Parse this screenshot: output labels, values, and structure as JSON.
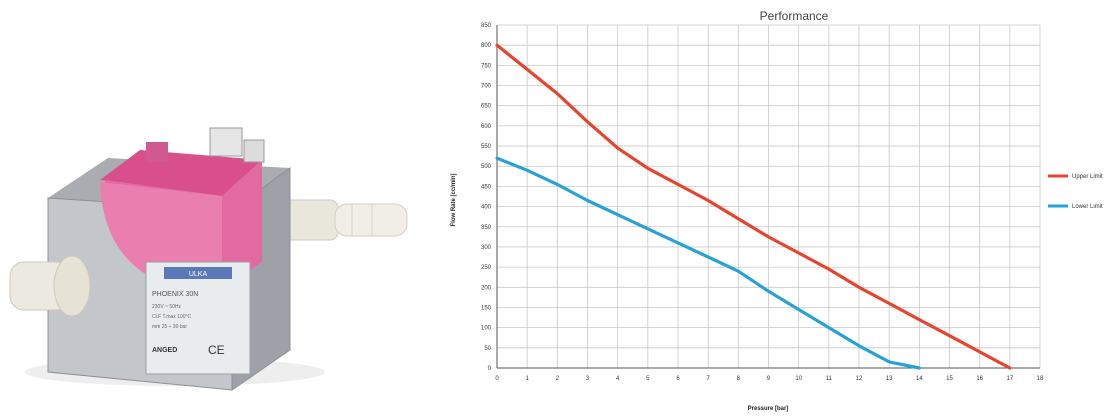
{
  "product": {
    "label_brand": "ULKA",
    "label_model": "PHOENIX 30N",
    "label_line1": "230V ~ 50Hz",
    "label_line2": "Cl.F T.max 100°C",
    "label_line3": "mm 25 ÷ 30 bar",
    "label_maker": "ANGED",
    "label_ce": "CE"
  },
  "colors": {
    "upper": "#e8432d",
    "lower": "#27a2d8",
    "grid": "#c8c8c8",
    "axis": "#555555",
    "coil": "#e0639a",
    "metal": "#b9bcc0"
  },
  "chart_data": {
    "type": "line",
    "title": "Performance",
    "xlabel": "Pressure [bar]",
    "ylabel": "Flow Rate [cc/min]",
    "xlim": [
      0,
      18
    ],
    "ylim": [
      0,
      850
    ],
    "x_ticks": [
      0,
      1,
      2,
      3,
      4,
      5,
      6,
      7,
      8,
      9,
      10,
      11,
      12,
      13,
      14,
      15,
      16,
      17,
      18
    ],
    "y_ticks": [
      0,
      50,
      100,
      150,
      200,
      250,
      300,
      350,
      400,
      450,
      500,
      550,
      600,
      650,
      700,
      750,
      800,
      850
    ],
    "grid": true,
    "legend_position": "right",
    "series": [
      {
        "name": "Upper Limit",
        "color": "#e8432d",
        "points": [
          [
            0,
            800
          ],
          [
            1,
            740
          ],
          [
            2,
            680
          ],
          [
            3,
            610
          ],
          [
            4,
            545
          ],
          [
            5,
            495
          ],
          [
            6,
            455
          ],
          [
            7,
            415
          ],
          [
            8,
            370
          ],
          [
            9,
            325
          ],
          [
            10,
            285
          ],
          [
            11,
            245
          ],
          [
            12,
            200
          ],
          [
            13,
            160
          ],
          [
            14,
            120
          ],
          [
            15,
            80
          ],
          [
            16,
            40
          ],
          [
            17,
            0
          ]
        ]
      },
      {
        "name": "Lower Limit",
        "color": "#27a2d8",
        "points": [
          [
            0,
            520
          ],
          [
            1,
            490
          ],
          [
            2,
            455
          ],
          [
            3,
            415
          ],
          [
            4,
            380
          ],
          [
            5,
            345
          ],
          [
            6,
            310
          ],
          [
            7,
            275
          ],
          [
            8,
            240
          ],
          [
            9,
            190
          ],
          [
            10,
            145
          ],
          [
            11,
            100
          ],
          [
            12,
            55
          ],
          [
            13,
            15
          ],
          [
            14,
            0
          ]
        ]
      }
    ]
  }
}
